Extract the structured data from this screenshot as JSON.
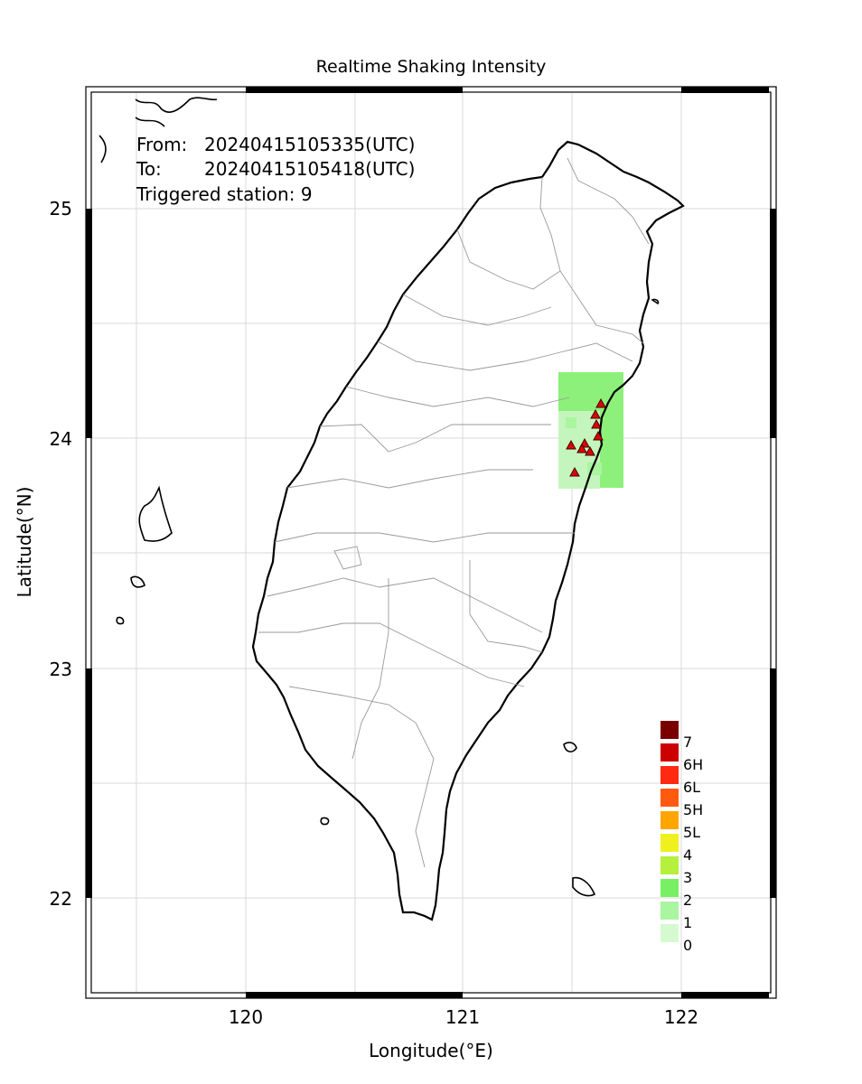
{
  "map": {
    "title": "Realtime Shaking Intensity",
    "info": {
      "from_label": "From:",
      "from_value": "20240415105335(UTC)",
      "to_label": "To:",
      "to_value": "20240415105418(UTC)",
      "triggered_label": "Triggered station: 9"
    },
    "axes": {
      "xlabel": "Longitude(°E)",
      "ylabel": "Latitude(°N)",
      "x_ticks": [
        "120",
        "121",
        "122"
      ],
      "y_ticks": [
        "25",
        "24",
        "23",
        "22"
      ]
    },
    "legend": {
      "levels": [
        {
          "label": "7",
          "color": "#7a0000"
        },
        {
          "label": "6H",
          "color": "#cc0000"
        },
        {
          "label": "6L",
          "color": "#ff2a10"
        },
        {
          "label": "5H",
          "color": "#ff5a10"
        },
        {
          "label": "5L",
          "color": "#ffa500"
        },
        {
          "label": "4",
          "color": "#f0f020"
        },
        {
          "label": "3",
          "color": "#b4f03c"
        },
        {
          "label": "2",
          "color": "#78f064"
        },
        {
          "label": "1",
          "color": "#aaf5a0"
        },
        {
          "label": "0",
          "color": "#d6fad0"
        }
      ]
    },
    "station_count": 9,
    "station_color": "#e00000",
    "grid_colors": {
      "level2": "#8cf07a",
      "level1": "#c4f5bc"
    }
  }
}
